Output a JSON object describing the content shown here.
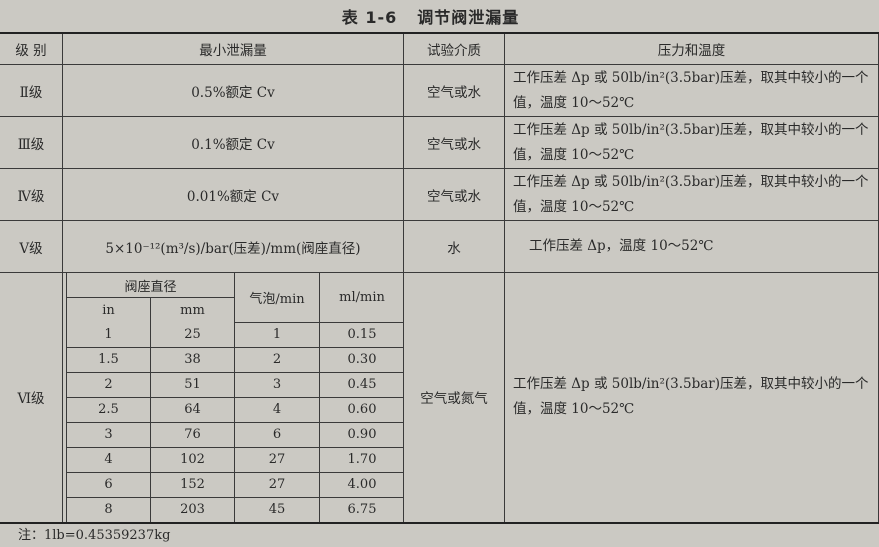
{
  "title": {
    "number": "表 1-6",
    "text": "调节阀泄漏量"
  },
  "headers": [
    "级 别",
    "最小泄漏量",
    "试验介质",
    "压力和温度"
  ],
  "rows": [
    {
      "grade": "Ⅱ级",
      "leakage": "0.5%额定 Cv",
      "medium": "空气或水",
      "condition": "工作压差 Δp 或 50lb/in²(3.5bar)压差，取其中较小的一个值，温度 10～52℃"
    },
    {
      "grade": "Ⅲ级",
      "leakage": "0.1%额定 Cv",
      "medium": "空气或水",
      "condition": "工作压差 Δp 或 50lb/in²(3.5bar)压差，取其中较小的一个值，温度 10～52℃"
    },
    {
      "grade": "Ⅳ级",
      "leakage": "0.01%额定 Cv",
      "medium": "空气或水",
      "condition": "工作压差 Δp 或 50lb/in²(3.5bar)压差，取其中较小的一个值，温度 10～52℃"
    },
    {
      "grade": "Ⅴ级",
      "leakage": "5×10⁻¹²(m³/s)/bar(压差)/mm(阀座直径)",
      "medium": "水",
      "condition": "工作压差 Δp，温度 10～52℃"
    }
  ],
  "grade6": {
    "grade": "Ⅵ级",
    "medium": "空气或氮气",
    "condition": "工作压差 Δp 或 50lb/in²(3.5bar)压差，取其中较小的一个值，温度 10～52℃",
    "inner_headers": {
      "seat_diameter": "阀座直径",
      "in": "in",
      "mm": "mm",
      "bubbles": "气泡/min",
      "ml": "ml/min"
    },
    "inner_rows": [
      [
        "1",
        "25",
        "1",
        "0.15"
      ],
      [
        "1.5",
        "38",
        "2",
        "0.30"
      ],
      [
        "2",
        "51",
        "3",
        "0.45"
      ],
      [
        "2.5",
        "64",
        "4",
        "0.60"
      ],
      [
        "3",
        "76",
        "6",
        "0.90"
      ],
      [
        "4",
        "102",
        "27",
        "1.70"
      ],
      [
        "6",
        "152",
        "27",
        "4.00"
      ],
      [
        "8",
        "203",
        "45",
        "6.75"
      ]
    ]
  },
  "note": "注：1lb=0.45359237kg"
}
